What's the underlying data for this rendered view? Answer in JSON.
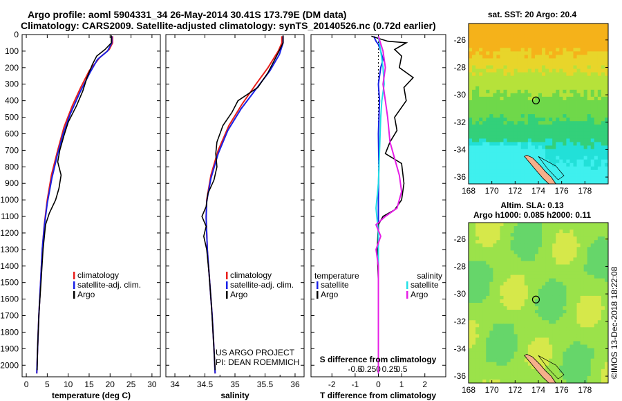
{
  "title_line1": "Argo profile: aoml 5904331_34 26-May-2014 30.41S 173.79E (DM data)",
  "title_line2": "Climatology: CARS2009. Satellite-adjusted climatology: synTS_20140526.nc (0.72d earlier)",
  "credit_line1": "US ARGO PROJECT",
  "credit_line2": "PI: DEAN ROEMMICH",
  "timestamp": "©IMOS 13-Dec-2018 18:22:08",
  "colors": {
    "climatology": "#e8201c",
    "satellite": "#1a22e6",
    "argo": "#000000",
    "satellite_s": "#22e0e6",
    "argo_s": "#e61ee6"
  },
  "chart_data": [
    {
      "type": "line",
      "xlabel": "temperature (deg C)",
      "xlim": [
        -1,
        32
      ],
      "ylim": [
        2070,
        0
      ],
      "xticks": [
        "0",
        "5",
        "10",
        "15",
        "20",
        "25",
        "30"
      ],
      "yticks": [
        "0",
        "100",
        "200",
        "300",
        "400",
        "500",
        "600",
        "700",
        "800",
        "900",
        "1000",
        "1100",
        "1200",
        "1300",
        "1400",
        "1500",
        "1600",
        "1700",
        "1800",
        "1900",
        "2000"
      ],
      "legend": [
        "climatology",
        "satellite-adj. clim.",
        "Argo"
      ],
      "series": [
        {
          "name": "climatology",
          "color": "#e8201c",
          "points": [
            [
              20.6,
              10
            ],
            [
              20.6,
              50
            ],
            [
              19.8,
              90
            ],
            [
              17.5,
              140
            ],
            [
              15.0,
              220
            ],
            [
              13.0,
              320
            ],
            [
              11.0,
              430
            ],
            [
              9.0,
              560
            ],
            [
              7.5,
              700
            ],
            [
              6.0,
              850
            ],
            [
              5.0,
              1000
            ],
            [
              4.3,
              1150
            ],
            [
              3.8,
              1300
            ],
            [
              3.4,
              1500
            ],
            [
              3.0,
              1700
            ],
            [
              2.7,
              1900
            ],
            [
              2.5,
              2050
            ]
          ]
        },
        {
          "name": "satellite-adj. clim.",
          "color": "#1a22e6",
          "points": [
            [
              20.4,
              10
            ],
            [
              20.4,
              50
            ],
            [
              19.4,
              100
            ],
            [
              17.0,
              150
            ],
            [
              15.2,
              230
            ],
            [
              12.8,
              350
            ],
            [
              10.5,
              480
            ],
            [
              8.8,
              600
            ],
            [
              7.4,
              730
            ],
            [
              6.1,
              870
            ],
            [
              5.0,
              1020
            ],
            [
              4.3,
              1160
            ],
            [
              3.8,
              1300
            ],
            [
              3.4,
              1500
            ],
            [
              3.0,
              1700
            ],
            [
              2.7,
              1900
            ],
            [
              2.5,
              2050
            ]
          ]
        },
        {
          "name": "Argo",
          "color": "#000000",
          "points": [
            [
              20.3,
              5
            ],
            [
              20.3,
              50
            ],
            [
              18.8,
              90
            ],
            [
              16.8,
              130
            ],
            [
              15.8,
              180
            ],
            [
              14.5,
              260
            ],
            [
              13.5,
              340
            ],
            [
              12.0,
              430
            ],
            [
              10.0,
              530
            ],
            [
              9.0,
              610
            ],
            [
              8.0,
              700
            ],
            [
              7.5,
              770
            ],
            [
              8.3,
              850
            ],
            [
              7.8,
              930
            ],
            [
              7.0,
              1000
            ],
            [
              5.5,
              1080
            ],
            [
              4.6,
              1150
            ],
            [
              4.0,
              1300
            ],
            [
              3.5,
              1500
            ],
            [
              3.0,
              1700
            ],
            [
              2.7,
              1900
            ],
            [
              2.6,
              2030
            ]
          ]
        }
      ]
    },
    {
      "type": "line",
      "xlabel": "salinity",
      "xlim": [
        33.85,
        36.15
      ],
      "ylim": [
        2070,
        0
      ],
      "xticks": [
        "34",
        "34.5",
        "35",
        "35.5",
        "36"
      ],
      "legend": [
        "climatology",
        "satellite-adj. clim.",
        "Argo"
      ],
      "series": [
        {
          "name": "climatology",
          "color": "#e8201c",
          "points": [
            [
              35.78,
              10
            ],
            [
              35.78,
              50
            ],
            [
              35.72,
              100
            ],
            [
              35.55,
              200
            ],
            [
              35.35,
              300
            ],
            [
              35.12,
              420
            ],
            [
              34.9,
              550
            ],
            [
              34.72,
              700
            ],
            [
              34.6,
              850
            ],
            [
              34.53,
              1000
            ],
            [
              34.52,
              1100
            ],
            [
              34.54,
              1300
            ],
            [
              34.58,
              1500
            ],
            [
              34.62,
              1700
            ],
            [
              34.65,
              1900
            ],
            [
              34.67,
              2050
            ]
          ]
        },
        {
          "name": "satellite-adj. clim.",
          "color": "#1a22e6",
          "points": [
            [
              35.8,
              10
            ],
            [
              35.8,
              50
            ],
            [
              35.74,
              120
            ],
            [
              35.58,
              220
            ],
            [
              35.35,
              330
            ],
            [
              35.1,
              450
            ],
            [
              34.88,
              580
            ],
            [
              34.72,
              720
            ],
            [
              34.6,
              870
            ],
            [
              34.53,
              1010
            ],
            [
              34.52,
              1110
            ],
            [
              34.54,
              1300
            ],
            [
              34.58,
              1500
            ],
            [
              34.62,
              1700
            ],
            [
              34.65,
              1900
            ],
            [
              34.67,
              2050
            ]
          ]
        },
        {
          "name": "Argo",
          "color": "#000000",
          "points": [
            [
              35.8,
              5
            ],
            [
              35.8,
              50
            ],
            [
              35.72,
              110
            ],
            [
              35.55,
              230
            ],
            [
              35.38,
              320
            ],
            [
              35.05,
              400
            ],
            [
              34.95,
              470
            ],
            [
              34.8,
              550
            ],
            [
              34.7,
              650
            ],
            [
              34.68,
              720
            ],
            [
              34.7,
              800
            ],
            [
              34.65,
              880
            ],
            [
              34.55,
              960
            ],
            [
              34.52,
              1040
            ],
            [
              34.45,
              1100
            ],
            [
              34.52,
              1160
            ],
            [
              34.48,
              1220
            ],
            [
              34.53,
              1300
            ],
            [
              34.57,
              1450
            ],
            [
              34.61,
              1650
            ],
            [
              34.65,
              1900
            ],
            [
              34.67,
              2030
            ]
          ]
        }
      ]
    },
    {
      "type": "line",
      "xlabel": "T difference from climatology",
      "xlabel2": "S difference from climatology",
      "xlim": [
        -2.9,
        2.9
      ],
      "ylim": [
        2070,
        0
      ],
      "xticks": [
        "-2",
        "-1",
        "0",
        "1",
        "2"
      ],
      "xticks_top": [
        "-0.5",
        "-0.25",
        "0",
        "0.25",
        "0.5"
      ],
      "legend_left_title": "temperature",
      "legend_right_title": "salinity",
      "legend_left": [
        "satellite",
        "Argo"
      ],
      "legend_right": [
        "satellite",
        "Argo"
      ],
      "series": [
        {
          "name": "satellite",
          "quantity": "temperature",
          "color": "#1a22e6",
          "points": [
            [
              -0.2,
              10
            ],
            [
              -0.1,
              40
            ],
            [
              0.0,
              60
            ],
            [
              0.1,
              100
            ],
            [
              0.2,
              150
            ],
            [
              0.1,
              200
            ],
            [
              0.0,
              300
            ],
            [
              0.05,
              400
            ],
            [
              0.0,
              600
            ],
            [
              0.02,
              800
            ],
            [
              0.0,
              1000
            ],
            [
              0.0,
              1200
            ],
            [
              0.0,
              1500
            ],
            [
              0.0,
              1800
            ],
            [
              0.0,
              2050
            ]
          ]
        },
        {
          "name": "Argo",
          "quantity": "temperature",
          "color": "#000000",
          "points": [
            [
              -0.3,
              10
            ],
            [
              0.4,
              40
            ],
            [
              1.2,
              50
            ],
            [
              0.7,
              90
            ],
            [
              1.0,
              130
            ],
            [
              0.9,
              200
            ],
            [
              1.5,
              260
            ],
            [
              1.1,
              320
            ],
            [
              1.2,
              400
            ],
            [
              0.7,
              500
            ],
            [
              0.8,
              580
            ],
            [
              0.5,
              650
            ],
            [
              0.3,
              720
            ],
            [
              1.0,
              780
            ],
            [
              1.1,
              900
            ],
            [
              1.0,
              1000
            ],
            [
              0.7,
              1060
            ],
            [
              0.2,
              1100
            ],
            [
              0.0,
              1150
            ],
            [
              -0.05,
              1300
            ],
            [
              0.0,
              1500
            ],
            [
              0.0,
              1800
            ],
            [
              0.0,
              2050
            ]
          ]
        },
        {
          "name": "satellite",
          "quantity": "salinity",
          "color": "#22e0e6",
          "points": [
            [
              0.0,
              10
            ],
            [
              0.1,
              100
            ],
            [
              0.2,
              200
            ],
            [
              0.25,
              300
            ],
            [
              0.15,
              400
            ],
            [
              0.1,
              500
            ],
            [
              0.05,
              700
            ],
            [
              0.0,
              900
            ],
            [
              -0.1,
              1050
            ],
            [
              0.0,
              1200
            ],
            [
              0.0,
              1500
            ],
            [
              0.0,
              1800
            ],
            [
              0.0,
              2050
            ]
          ]
        },
        {
          "name": "Argo",
          "quantity": "salinity",
          "color": "#e61ee6",
          "points": [
            [
              0.0,
              10
            ],
            [
              0.2,
              100
            ],
            [
              0.3,
              200
            ],
            [
              0.2,
              300
            ],
            [
              0.3,
              400
            ],
            [
              0.4,
              500
            ],
            [
              0.5,
              650
            ],
            [
              0.7,
              750
            ],
            [
              0.9,
              850
            ],
            [
              1.0,
              950
            ],
            [
              0.8,
              1050
            ],
            [
              0.3,
              1100
            ],
            [
              -0.1,
              1150
            ],
            [
              0.1,
              1220
            ],
            [
              -0.1,
              1300
            ],
            [
              0.0,
              1400
            ],
            [
              0.0,
              1600
            ],
            [
              0.0,
              1800
            ],
            [
              0.0,
              2050
            ]
          ]
        }
      ]
    },
    {
      "type": "heatmap",
      "title": "sat. SST: 20 Argo: 20.4",
      "xlim": [
        168,
        180
      ],
      "ylim": [
        -36.5,
        -24.8
      ],
      "xticks": [
        "168",
        "170",
        "172",
        "174",
        "176",
        "178"
      ],
      "yticks": [
        "-26",
        "-28",
        "-30",
        "-32",
        "-34",
        "-36"
      ],
      "marker": [
        173.79,
        -30.41
      ]
    },
    {
      "type": "heatmap",
      "title": "Altim. SLA: 0.13",
      "title2": "Argo h1000: 0.085 h2000: 0.11",
      "xlim": [
        168,
        180
      ],
      "ylim": [
        -36.5,
        -24.8
      ],
      "xticks": [
        "168",
        "170",
        "172",
        "174",
        "176",
        "178"
      ],
      "yticks": [
        "-26",
        "-28",
        "-30",
        "-32",
        "-34",
        "-36"
      ],
      "marker": [
        173.79,
        -30.41
      ]
    }
  ]
}
